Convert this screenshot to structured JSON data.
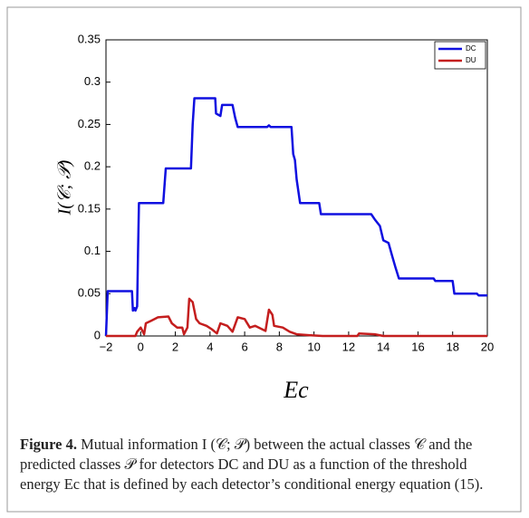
{
  "chart_data": {
    "type": "line",
    "xlabel": "Ec",
    "ylabel": "I(𝒞; 𝒫)",
    "xlim": [
      -2,
      20
    ],
    "xticks": [
      {
        "value": -2,
        "label": "−2"
      },
      0,
      2,
      4,
      6,
      8,
      10,
      12,
      14,
      16,
      18,
      20
    ],
    "ylim": [
      0,
      0.35
    ],
    "yticks": [
      0,
      0.05,
      0.1,
      0.15,
      0.2,
      0.25,
      0.3,
      0.35
    ],
    "legend": "upper right",
    "series": [
      {
        "name": "DC",
        "color": "#1010e0",
        "x": [
          -2,
          -1.9,
          -1.3,
          -0.5,
          -0.45,
          -0.35,
          -0.3,
          -0.2,
          -0.15,
          -0.1,
          1.3,
          1.45,
          2.9,
          3.0,
          3.1,
          4.3,
          4.35,
          4.6,
          4.7,
          5.3,
          5.45,
          5.6,
          7.3,
          7.4,
          7.5,
          8.7,
          8.8,
          8.9,
          9.0,
          9.2,
          10.3,
          10.4,
          13.3,
          13.5,
          13.8,
          14.0,
          14.3,
          14.5,
          14.7,
          14.9,
          16.9,
          17.0,
          18.0,
          18.1,
          19.4,
          19.5,
          20
        ],
        "values": [
          0,
          0.053,
          0.053,
          0.053,
          0.03,
          0.033,
          0.03,
          0.035,
          0.1,
          0.157,
          0.157,
          0.198,
          0.198,
          0.25,
          0.281,
          0.281,
          0.263,
          0.26,
          0.273,
          0.273,
          0.258,
          0.247,
          0.247,
          0.249,
          0.247,
          0.247,
          0.215,
          0.208,
          0.185,
          0.157,
          0.157,
          0.144,
          0.144,
          0.138,
          0.13,
          0.113,
          0.11,
          0.095,
          0.081,
          0.068,
          0.068,
          0.065,
          0.065,
          0.05,
          0.05,
          0.048,
          0.048
        ]
      },
      {
        "name": "DU",
        "color": "#c41e1e",
        "x": [
          -2,
          -0.3,
          -0.2,
          0.0,
          0.2,
          0.3,
          0.6,
          1.0,
          1.6,
          1.8,
          2.1,
          2.4,
          2.5,
          2.7,
          2.8,
          3.0,
          3.2,
          3.4,
          3.8,
          4.1,
          4.4,
          4.6,
          5.0,
          5.3,
          5.6,
          6.0,
          6.3,
          6.6,
          7.0,
          7.2,
          7.4,
          7.6,
          7.7,
          8.2,
          8.6,
          9.0,
          9.7,
          10.5,
          12.5,
          12.6,
          13.5,
          14.0,
          20
        ],
        "values": [
          0,
          0,
          0.005,
          0.01,
          0.002,
          0.015,
          0.018,
          0.022,
          0.023,
          0.015,
          0.01,
          0.01,
          0.002,
          0.01,
          0.044,
          0.04,
          0.02,
          0.015,
          0.012,
          0.008,
          0.003,
          0.015,
          0.012,
          0.005,
          0.022,
          0.02,
          0.01,
          0.012,
          0.008,
          0.006,
          0.031,
          0.025,
          0.012,
          0.01,
          0.005,
          0.002,
          0.001,
          0,
          0,
          0.003,
          0.002,
          0,
          0
        ]
      }
    ]
  },
  "caption_label": "Figure 4.",
  "caption_text": "Mutual information I (𝒞; 𝒫) between the actual classes 𝒞 and the predicted classes 𝒫 for detectors DC and DU as a function of the threshold energy Ec that is defined by each detector’s conditional energy equation (15)."
}
